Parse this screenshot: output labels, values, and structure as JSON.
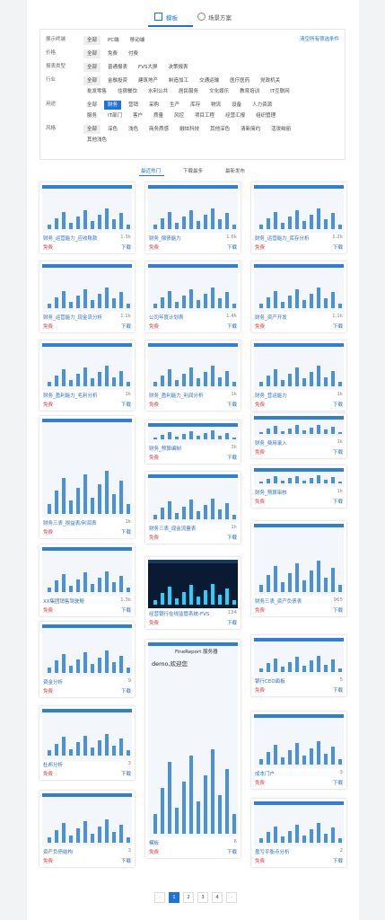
{
  "tabs": [
    "模板",
    "场景方案"
  ],
  "clear": "清空所有筛选条件",
  "filters": [
    {
      "label": "展示终端",
      "options": [
        "全部",
        "PC端",
        "移动端"
      ],
      "selected": 0
    },
    {
      "label": "价格",
      "options": [
        "全部",
        "免费",
        "付费"
      ],
      "selected": 0
    },
    {
      "label": "报表类型",
      "options": [
        "全部",
        "普通报表",
        "FVS大屏",
        "决策报表"
      ],
      "selected": 0
    },
    {
      "label": "行业",
      "options": [
        "全部",
        "金融投资",
        "建筑地产",
        "制造加工",
        "交通运输",
        "医疗医药",
        "党政机关",
        "批发零售",
        "住宿餐饮",
        "水利公共",
        "居民服务",
        "文化娱乐",
        "教育培训",
        "IT互联网"
      ],
      "selected": 0
    },
    {
      "label": "用途",
      "options": [
        "全部",
        "财务",
        "营销",
        "采购",
        "生产",
        "库存",
        "物流",
        "设备",
        "人力资源",
        "服务",
        "IT部门",
        "客户",
        "质量",
        "风控",
        "项目工程",
        "经营汇报",
        "组织管理"
      ],
      "selected": 1
    },
    {
      "label": "风格",
      "options": [
        "全部",
        "深色",
        "浅色",
        "商务质感",
        "融炫科技",
        "其他深色",
        "清新简约",
        "活泼绚丽",
        "其他浅色"
      ],
      "selected": 0
    }
  ],
  "sort": [
    "最近热门",
    "下载最多",
    "最新发布"
  ],
  "cards": [
    {
      "title": "财务_运营能力_应收账款",
      "views": "1.3k"
    },
    {
      "title": "财务_运营能力_现金流分析",
      "views": "1.1k"
    },
    {
      "title": "财务_盈利能力_毛利分析",
      "views": "1k"
    },
    {
      "title": "财务三表_损益表/利润表",
      "views": "1k"
    },
    {
      "title": "XX集团销售驾驶舱",
      "views": "1.3k"
    },
    {
      "title": "资金分析",
      "views": "9"
    },
    {
      "title": "杜邦分析",
      "views": "3"
    },
    {
      "title": "资产负债结构",
      "views": "3"
    },
    {
      "title": "财务_偿债能力",
      "views": "1.6k"
    },
    {
      "title": "公司年度计划表",
      "views": "1.4k"
    },
    {
      "title": "财务_盈利能力_利润分析",
      "views": "1k"
    },
    {
      "title": "财务_预算编制",
      "views": "1k"
    },
    {
      "title": "财务三表_现金流量表",
      "views": "1k"
    },
    {
      "title": "经营银行在线监管系统-FVS",
      "views": "134"
    },
    {
      "title": "模板",
      "views": "6"
    },
    {
      "title": "财务_运营能力_库存分析",
      "views": "1.2k"
    },
    {
      "title": "财务_资产开发",
      "views": "1.1k"
    },
    {
      "title": "财务_营运能力",
      "views": "1k"
    },
    {
      "title": "财务_费用录入",
      "views": "1k"
    },
    {
      "title": "财务_预算审核",
      "views": "1k"
    },
    {
      "title": "财务三表_资产负债表",
      "views": "965"
    },
    {
      "title": "银行CEO面板",
      "views": "5"
    },
    {
      "title": "成本门户",
      "views": "3"
    },
    {
      "title": "盈亏平衡点分析",
      "views": "2"
    }
  ],
  "price": "免费",
  "download": "下载",
  "mobile": {
    "greeting": "demo,欢迎您",
    "server": "FineReport 服务器"
  },
  "pages": [
    "1",
    "2",
    "3",
    "4"
  ],
  "current": 0
}
